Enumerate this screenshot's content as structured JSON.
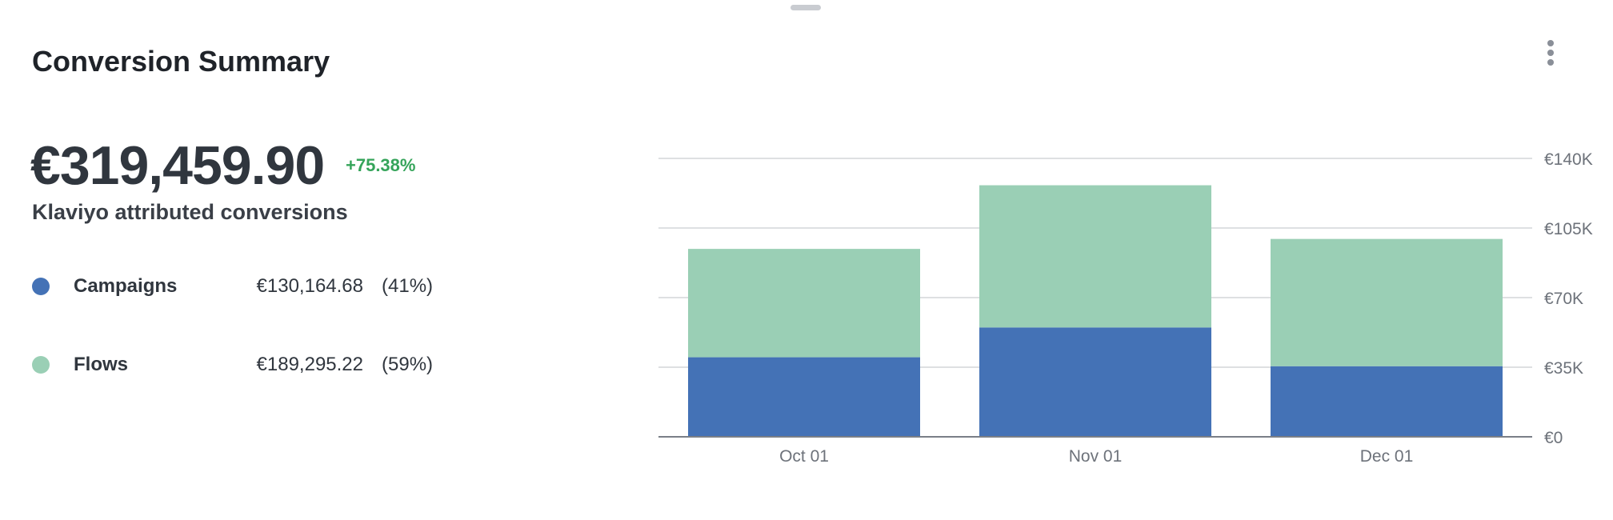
{
  "header": {
    "title": "Conversion Summary"
  },
  "summary": {
    "total": "€319,459.90",
    "change": "+75.38%",
    "subtitle": "Klaviyo attributed conversions"
  },
  "legend": [
    {
      "name": "Campaigns",
      "value": "€130,164.68",
      "pct": "(41%)",
      "color": "#4472b6"
    },
    {
      "name": "Flows",
      "value": "€189,295.22",
      "pct": "(59%)",
      "color": "#9acfb5"
    }
  ],
  "chart_data": {
    "type": "bar",
    "stacked": true,
    "categories": [
      "Oct 01",
      "Nov 01",
      "Dec 01"
    ],
    "series": [
      {
        "name": "Campaigns",
        "color": "#4472b6",
        "values": [
          40000,
          55000,
          35500
        ]
      },
      {
        "name": "Flows",
        "color": "#9acfb5",
        "values": [
          54500,
          71500,
          64000
        ]
      }
    ],
    "ylim": [
      0,
      140000
    ],
    "y_ticks": [
      0,
      35000,
      70000,
      105000,
      140000
    ],
    "y_tick_labels": [
      "€0",
      "€35K",
      "€70K",
      "€105K",
      "€140K"
    ],
    "y_axis_side": "right",
    "grid": true
  }
}
